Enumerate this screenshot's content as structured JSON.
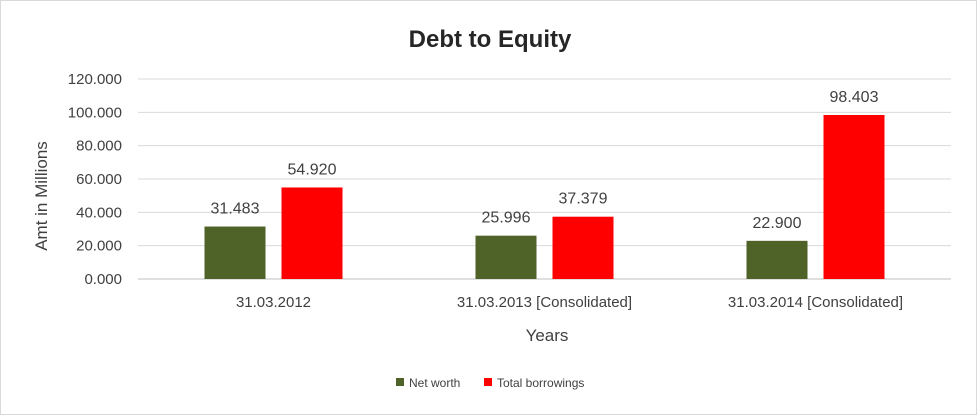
{
  "chart_data": {
    "type": "bar",
    "title": "Debt to Equity",
    "xlabel": "Years",
    "ylabel": "Amt in Millions",
    "ylim": [
      0,
      120
    ],
    "yticks": [
      "0.000",
      "20.000",
      "40.000",
      "60.000",
      "80.000",
      "100.000",
      "120.000"
    ],
    "categories": [
      "31.03.2012",
      "31.03.2013 [Consolidated]",
      "31.03.2014 [Consolidated]"
    ],
    "series": [
      {
        "name": "Net worth",
        "color": "#4f6228",
        "values": [
          31.483,
          25.996,
          22.9
        ],
        "labels": [
          "31.483",
          "25.996",
          "22.900"
        ]
      },
      {
        "name": "Total borrowings",
        "color": "#ff0000",
        "values": [
          54.92,
          37.379,
          98.403
        ],
        "labels": [
          "54.920",
          "37.379",
          "98.403"
        ]
      }
    ],
    "grid": true,
    "legend": "bottom-center"
  }
}
